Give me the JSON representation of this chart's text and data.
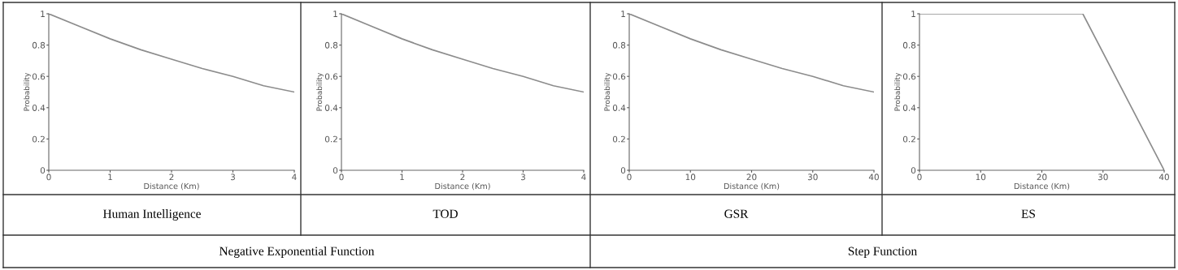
{
  "chart_data": [
    {
      "type": "line",
      "title": "Human Intelligence",
      "xlabel": "Distance (Km)",
      "ylabel": "Probability",
      "x": [
        0,
        0.5,
        1,
        1.5,
        2,
        2.5,
        3,
        3.5,
        4
      ],
      "series": [
        {
          "color": "#8c8c8c",
          "values": [
            1,
            0.92,
            0.84,
            0.77,
            0.71,
            0.65,
            0.6,
            0.54,
            0.5
          ]
        }
      ],
      "xlim": [
        0,
        4
      ],
      "ylim": [
        0,
        1
      ],
      "xticks": [
        0,
        1,
        2,
        3,
        4
      ],
      "yticks": [
        0,
        0.2,
        0.4,
        0.6,
        0.8,
        1
      ],
      "grid": false,
      "marker": "none",
      "line_style": "solid",
      "annotations": [
        "Negative Exponential Function"
      ]
    },
    {
      "type": "line",
      "title": "TOD",
      "xlabel": "Distance (Km)",
      "ylabel": "Probability",
      "x": [
        0,
        0.5,
        1,
        1.5,
        2,
        2.5,
        3,
        3.5,
        4
      ],
      "series": [
        {
          "color": "#8c8c8c",
          "values": [
            1,
            0.92,
            0.84,
            0.77,
            0.71,
            0.65,
            0.6,
            0.54,
            0.5
          ]
        }
      ],
      "xlim": [
        0,
        4
      ],
      "ylim": [
        0,
        1
      ],
      "xticks": [
        0,
        1,
        2,
        3,
        4
      ],
      "yticks": [
        0,
        0.2,
        0.4,
        0.6,
        0.8,
        1
      ],
      "grid": false,
      "marker": "none",
      "line_style": "solid"
    },
    {
      "type": "line",
      "title": "GSR",
      "xlabel": "Distance (Km)",
      "ylabel": "Probability",
      "x": [
        0,
        5,
        10,
        15,
        20,
        25,
        30,
        35,
        40
      ],
      "series": [
        {
          "color": "#8c8c8c",
          "values": [
            1,
            0.92,
            0.84,
            0.77,
            0.71,
            0.65,
            0.6,
            0.54,
            0.5
          ]
        }
      ],
      "xlim": [
        0,
        40
      ],
      "ylim": [
        0,
        1
      ],
      "xticks": [
        0,
        10,
        20,
        30,
        40
      ],
      "yticks": [
        0,
        0.2,
        0.4,
        0.6,
        0.8,
        1
      ],
      "grid": false,
      "marker": "none",
      "line_style": "solid",
      "annotations": [
        "Step Function"
      ]
    },
    {
      "type": "line",
      "title": "ES",
      "xlabel": "Distance (Km)",
      "ylabel": "Probability",
      "x": [
        0,
        26.7,
        40
      ],
      "series": [
        {
          "color": "#8c8c8c",
          "values": [
            1,
            1,
            0
          ]
        }
      ],
      "xlim": [
        0,
        40
      ],
      "ylim": [
        0,
        1
      ],
      "xticks": [
        0,
        10,
        20,
        30,
        40
      ],
      "yticks": [
        0,
        0.2,
        0.4,
        0.6,
        0.8,
        1
      ],
      "grid": false,
      "marker": "none",
      "line_style": "solid"
    }
  ]
}
